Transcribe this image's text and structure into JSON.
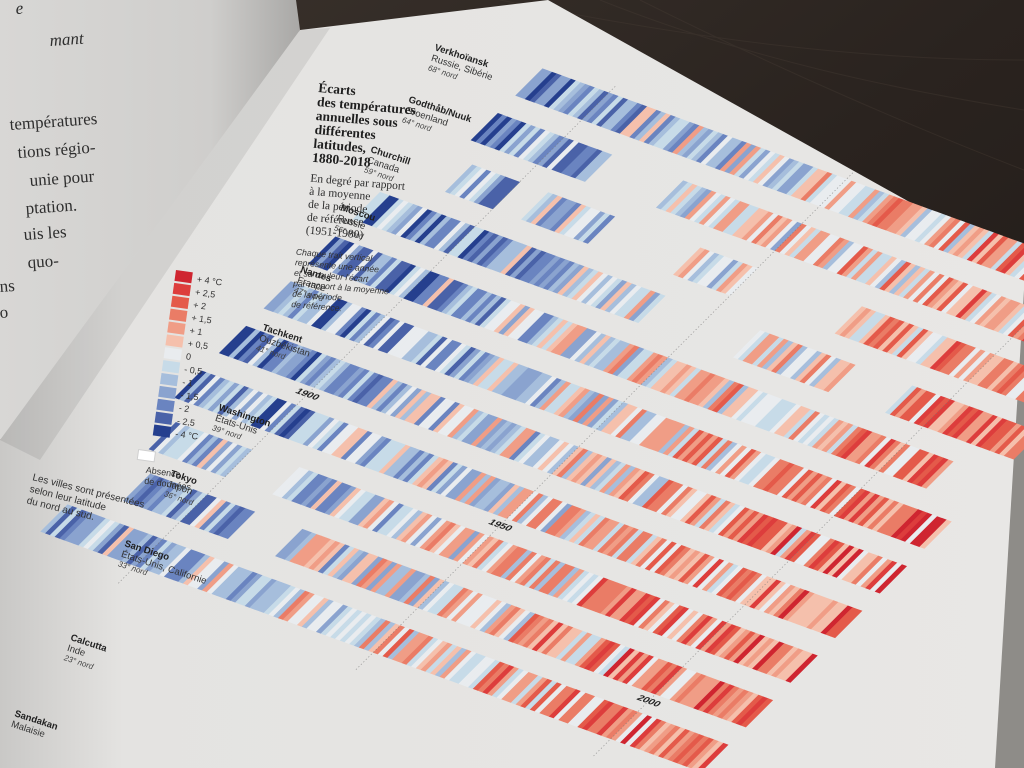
{
  "left_page": {
    "fragments": [
      "e",
      "mant",
      "températures",
      "tions régio-",
      "unie pour",
      "ptation.",
      "uis les",
      "quo-",
      "ns",
      "o"
    ]
  },
  "chart": {
    "title_lines": [
      "Écarts",
      "des températures",
      "annuelles sous",
      "différentes",
      "latitudes,",
      "1880-2018"
    ],
    "subtitle_lines": [
      "En degré par rapport",
      "à la moyenne",
      "de la période",
      "de référence",
      "(1951-1980)"
    ],
    "description_lines": [
      "Chaque trait vertical",
      "représente une année",
      "et sa couleur l'écart",
      "par rapport à la moyenne",
      "de la période",
      "de référence."
    ],
    "footnote_lines": [
      "Les villes sont présentées",
      "selon leur latitude",
      "du nord au sud."
    ],
    "legend": {
      "labels": [
        "+ 4 °C",
        "+ 2,5",
        "+ 2",
        "+ 1,5",
        "+ 1",
        "+ 0,5",
        "0",
        "- 0,5",
        "- 1",
        "- 1,5",
        "- 2",
        "- 2,5",
        "- 4 °C"
      ],
      "colors": [
        "#cf2530",
        "#dd3d3c",
        "#e45a4a",
        "#ea7c66",
        "#f09d86",
        "#f5c0ac",
        "#e9ecef",
        "#c7dbe8",
        "#a6bedc",
        "#8aa3cf",
        "#6a84c0",
        "#4a62a8",
        "#253f8e"
      ],
      "no_data_label_lines": [
        "Absence",
        "de données"
      ]
    },
    "year_labels": [
      "1900",
      "1950",
      "2000"
    ],
    "cities": [
      {
        "name": "Verkhoïansk",
        "region": "Russie, Sibérie",
        "latitude": "68° nord"
      },
      {
        "name": "Godthåb/Nuuk",
        "region": "Groenland",
        "latitude": "64° nord"
      },
      {
        "name": "Churchill",
        "region": "Canada",
        "latitude": "59° nord"
      },
      {
        "name": "Moscou",
        "region": "Russie",
        "latitude": "56° nord"
      },
      {
        "name": "Nantes",
        "region": "France",
        "latitude": "47° nord"
      },
      {
        "name": "Tachkent",
        "region": "Ouzbékistan",
        "latitude": "41° nord"
      },
      {
        "name": "Washington",
        "region": "États-Unis",
        "latitude": "39° nord"
      },
      {
        "name": "Tokyo",
        "region": "Japon",
        "latitude": "36° nord"
      },
      {
        "name": "San Diego",
        "region": "États-Unis, Californie",
        "latitude": "33° nord"
      },
      {
        "name": "Calcutta",
        "region": "Inde",
        "latitude": "23° nord"
      },
      {
        "name": "Sandakan",
        "region": "Malaisie",
        "latitude": ""
      }
    ]
  }
}
